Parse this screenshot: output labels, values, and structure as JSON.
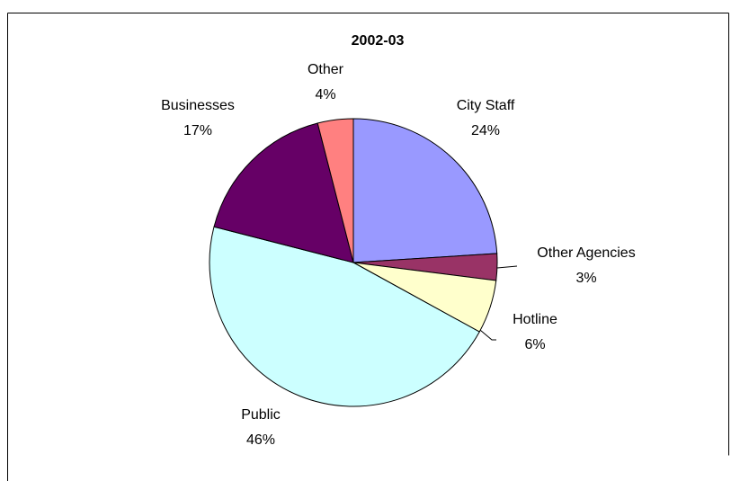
{
  "chart_data": {
    "type": "pie",
    "title": "2002-03",
    "categories": [
      "City Staff",
      "Other Agencies",
      "Hotline",
      "Public",
      "Businesses",
      "Other"
    ],
    "values": [
      24,
      3,
      6,
      46,
      17,
      4
    ],
    "value_labels": [
      "24%",
      "3%",
      "6%",
      "46%",
      "17%",
      "4%"
    ],
    "colors": [
      "#9999ff",
      "#993366",
      "#ffffcc",
      "#ccffff",
      "#660066",
      "#ff8080"
    ]
  }
}
